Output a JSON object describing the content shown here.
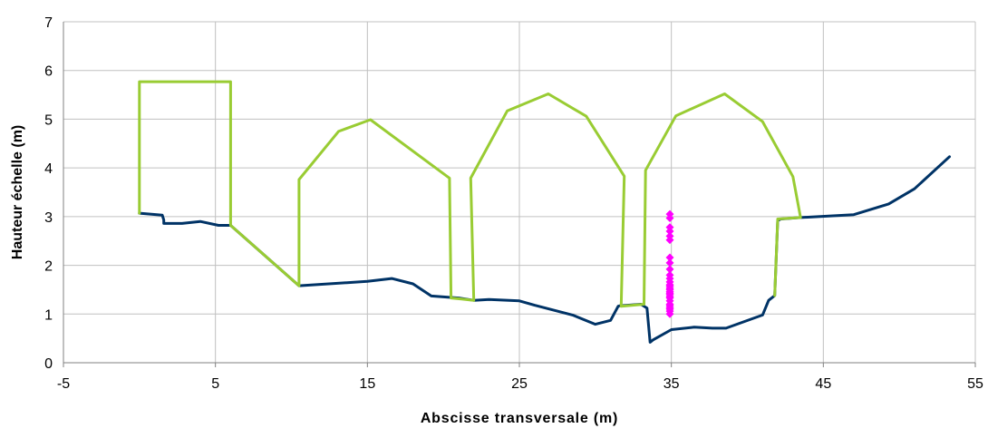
{
  "chart_data": {
    "type": "line",
    "xlabel": "Abscisse transversale (m)",
    "ylabel": "Hauteur échelle (m)",
    "xlim": [
      -5,
      55
    ],
    "ylim": [
      0,
      7
    ],
    "xticks": [
      -5,
      5,
      15,
      25,
      35,
      45,
      55
    ],
    "yticks": [
      0,
      1,
      2,
      3,
      4,
      5,
      6,
      7
    ],
    "grid": true,
    "legend": "none",
    "colors": {
      "bed": "#003366",
      "structure": "#99CC33",
      "points": "#FF00FF",
      "grid": "#C0C0C0"
    },
    "series": [
      {
        "style": "line",
        "color": "#003366",
        "x": [
          0.0,
          1.5,
          1.6,
          1.6,
          2.8,
          4.0,
          5.2,
          6.0,
          10.5,
          15.0,
          16.6,
          18.0,
          19.2,
          21.0,
          22.0,
          23.0,
          25.0,
          26.0,
          28.5,
          30.0,
          31.0,
          31.5,
          31.6,
          33.0,
          33.4,
          33.6,
          33.8,
          35.0,
          36.5,
          37.7,
          38.6,
          41.0,
          41.4,
          41.8,
          42.0,
          42.2,
          43.5,
          47.0,
          49.3,
          51.0,
          53.3
        ],
        "y": [
          3.07,
          3.03,
          2.93,
          2.86,
          2.86,
          2.9,
          2.82,
          2.82,
          1.58,
          1.67,
          1.73,
          1.62,
          1.37,
          1.33,
          1.28,
          1.3,
          1.27,
          1.18,
          0.98,
          0.79,
          0.87,
          1.16,
          1.17,
          1.2,
          1.12,
          0.42,
          0.47,
          0.68,
          0.73,
          0.71,
          0.71,
          0.98,
          1.28,
          1.38,
          2.92,
          2.95,
          2.98,
          3.04,
          3.26,
          3.57,
          4.23
        ]
      },
      {
        "style": "line",
        "color": "#99CC33",
        "x": [
          0.0,
          0.0,
          6.0,
          6.0,
          10.5,
          10.5,
          13.1,
          15.2,
          20.4,
          20.5,
          22.0,
          21.8,
          24.2,
          26.9,
          29.4,
          31.9,
          31.7,
          33.2,
          33.3,
          35.3,
          38.5,
          41.0,
          43.0,
          43.5,
          42.0,
          41.8
        ],
        "y": [
          3.07,
          5.77,
          5.77,
          2.82,
          1.58,
          3.76,
          4.75,
          4.99,
          3.79,
          1.33,
          1.28,
          3.79,
          5.17,
          5.52,
          5.06,
          3.83,
          1.16,
          1.2,
          3.95,
          5.07,
          5.52,
          4.95,
          3.82,
          2.98,
          2.95,
          1.38
        ]
      },
      {
        "style": "points",
        "marker": "diamond",
        "color": "#FF00FF",
        "x": [
          34.9,
          34.9,
          34.9,
          34.9,
          34.9,
          34.9,
          34.9,
          34.9,
          34.9,
          34.9,
          34.9,
          34.9,
          34.9,
          34.9,
          34.9,
          34.9,
          34.9,
          34.9,
          34.9,
          34.9,
          34.9,
          34.9,
          34.9,
          34.9,
          34.9,
          34.9,
          34.9,
          34.9
        ],
        "y": [
          1.0,
          1.06,
          1.13,
          1.2,
          1.27,
          1.33,
          1.4,
          1.46,
          1.53,
          1.6,
          1.66,
          1.73,
          1.8,
          1.92,
          2.05,
          2.16,
          2.52,
          2.6,
          2.7,
          2.78,
          2.97,
          3.05,
          1.1,
          1.17,
          1.36,
          1.43,
          1.5,
          1.57
        ]
      }
    ]
  }
}
